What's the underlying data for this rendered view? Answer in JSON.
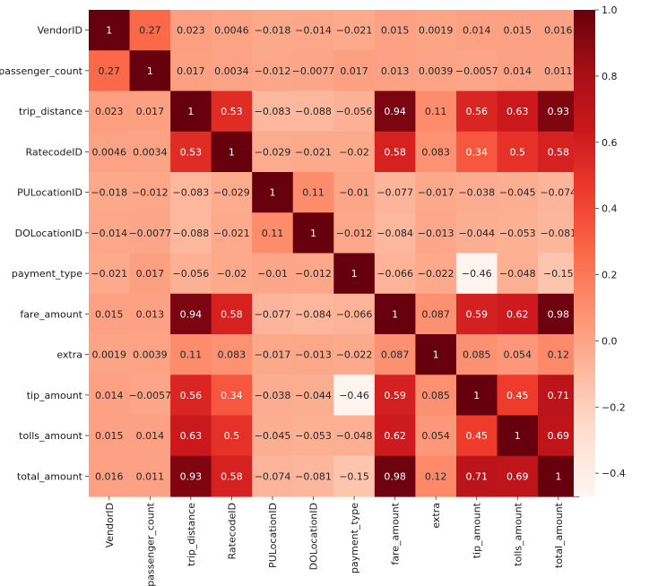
{
  "chart_data": {
    "type": "heatmap",
    "colormap": "Reds",
    "vmin": -0.47,
    "vmax": 1.0,
    "row_labels": [
      "VendorID",
      "passenger_count",
      "trip_distance",
      "RatecodeID",
      "PULocationID",
      "DOLocationID",
      "payment_type",
      "fare_amount",
      "extra",
      "tip_amount",
      "tolls_amount",
      "total_amount"
    ],
    "col_labels": [
      "VendorID",
      "passenger_count",
      "trip_distance",
      "RatecodeID",
      "PULocationID",
      "DOLocationID",
      "payment_type",
      "fare_amount",
      "extra",
      "tip_amount",
      "tolls_amount",
      "total_amount"
    ],
    "values": [
      [
        1,
        0.27,
        0.023,
        0.0046,
        -0.018,
        -0.014,
        -0.021,
        0.015,
        0.0019,
        0.014,
        0.015,
        0.016
      ],
      [
        0.27,
        1,
        0.017,
        0.0034,
        -0.012,
        -0.0077,
        0.017,
        0.013,
        0.0039,
        -0.0057,
        0.014,
        0.011
      ],
      [
        0.023,
        0.017,
        1,
        0.53,
        -0.083,
        -0.088,
        -0.056,
        0.94,
        0.11,
        0.56,
        0.63,
        0.93
      ],
      [
        0.0046,
        0.0034,
        0.53,
        1,
        -0.029,
        -0.021,
        -0.02,
        0.58,
        0.083,
        0.34,
        0.5,
        0.58
      ],
      [
        -0.018,
        -0.012,
        -0.083,
        -0.029,
        1,
        0.11,
        -0.01,
        -0.077,
        -0.017,
        -0.038,
        -0.045,
        -0.074
      ],
      [
        -0.014,
        -0.0077,
        -0.088,
        -0.021,
        0.11,
        1,
        -0.012,
        -0.084,
        -0.013,
        -0.044,
        -0.053,
        -0.081
      ],
      [
        -0.021,
        0.017,
        -0.056,
        -0.02,
        -0.01,
        -0.012,
        1,
        -0.066,
        -0.022,
        -0.46,
        -0.048,
        -0.15
      ],
      [
        0.015,
        0.013,
        0.94,
        0.58,
        -0.077,
        -0.084,
        -0.066,
        1,
        0.087,
        0.59,
        0.62,
        0.98
      ],
      [
        0.0019,
        0.0039,
        0.11,
        0.083,
        -0.017,
        -0.013,
        -0.022,
        0.087,
        1,
        0.085,
        0.054,
        0.12
      ],
      [
        0.014,
        -0.0057,
        0.56,
        0.34,
        -0.038,
        -0.044,
        -0.46,
        0.59,
        0.085,
        1,
        0.45,
        0.71
      ],
      [
        0.015,
        0.014,
        0.63,
        0.5,
        -0.045,
        -0.053,
        -0.048,
        0.62,
        0.054,
        0.45,
        1,
        0.69
      ],
      [
        0.016,
        0.011,
        0.93,
        0.58,
        -0.074,
        -0.081,
        -0.15,
        0.98,
        0.12,
        0.71,
        0.69,
        1
      ]
    ],
    "colorbar_ticks": [
      1.0,
      0.8,
      0.6,
      0.4,
      0.2,
      0.0,
      -0.2,
      -0.4
    ],
    "colorbar_tick_labels": [
      "1.0",
      "0.8",
      "0.6",
      "0.4",
      "0.2",
      "0.0",
      "−0.2",
      "−0.4"
    ],
    "title": "",
    "xlabel": "",
    "ylabel": ""
  }
}
